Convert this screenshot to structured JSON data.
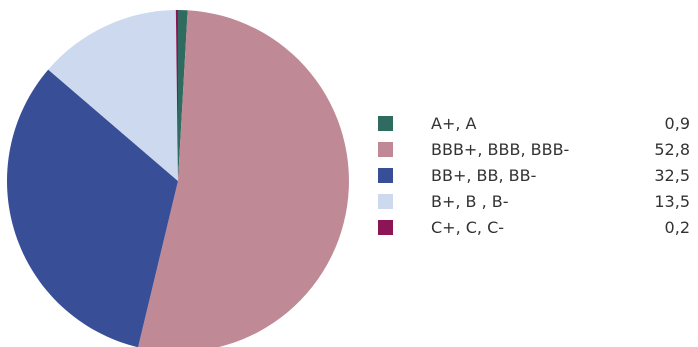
{
  "chart_data": {
    "type": "pie",
    "slices": [
      {
        "label": "A+, A",
        "value": 0.9,
        "display": "0,9",
        "color": "#2f6b5e"
      },
      {
        "label": "BBB+, BBB, BBB-",
        "value": 52.8,
        "display": "52,8",
        "color": "#bf8a96"
      },
      {
        "label": "BB+, BB, BB-",
        "value": 32.5,
        "display": "32,5",
        "color": "#384f97"
      },
      {
        "label": "B+, B , B-",
        "value": 13.5,
        "display": "13,5",
        "color": "#ccd9ef"
      },
      {
        "label": "C+, C, C-",
        "value": 0.2,
        "display": "0,2",
        "color": "#8c1655"
      }
    ],
    "legend_position": "right",
    "start": "top",
    "direction": "clockwise"
  }
}
